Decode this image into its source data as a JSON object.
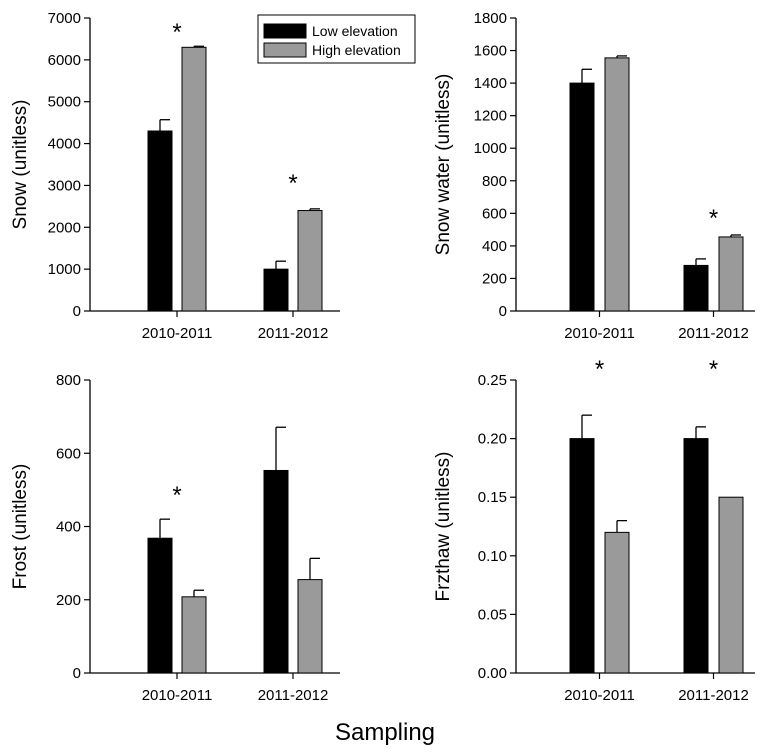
{
  "figure": {
    "xlabel": "Sampling"
  },
  "legend": {
    "items": [
      {
        "label": "Low elevation",
        "color": "#000000"
      },
      {
        "label": "High elevation",
        "color": "#9a9a9a"
      }
    ]
  },
  "chart_data": [
    {
      "type": "bar",
      "ylabel": "Snow (unitless)",
      "categories": [
        "2010-2011",
        "2011-2012"
      ],
      "series": [
        {
          "name": "Low elevation",
          "values": [
            4300,
            1000
          ],
          "errors": [
            270,
            190
          ]
        },
        {
          "name": "High elevation",
          "values": [
            6300,
            2400
          ],
          "errors": [
            25,
            40
          ]
        }
      ],
      "ylim": [
        0,
        7000
      ],
      "yticks": [
        "0",
        "1000",
        "2000",
        "3000",
        "4000",
        "5000",
        "6000",
        "7000"
      ],
      "significance": [
        "*",
        "*"
      ],
      "legend_position": "top-right"
    },
    {
      "type": "bar",
      "ylabel": "Snow water (unitless)",
      "categories": [
        "2010-2011",
        "2011-2012"
      ],
      "series": [
        {
          "name": "Low elevation",
          "values": [
            1400,
            280
          ],
          "errors": [
            85,
            40
          ]
        },
        {
          "name": "High elevation",
          "values": [
            1555,
            455
          ],
          "errors": [
            12,
            12
          ]
        }
      ],
      "ylim": [
        0,
        1800
      ],
      "yticks": [
        "0",
        "200",
        "400",
        "600",
        "800",
        "1000",
        "1200",
        "1400",
        "1600",
        "1800"
      ],
      "significance": [
        "",
        "*"
      ]
    },
    {
      "type": "bar",
      "ylabel": "Frost (unitless)",
      "categories": [
        "2010-2011",
        "2011-2012"
      ],
      "series": [
        {
          "name": "Low elevation",
          "values": [
            368,
            553
          ],
          "errors": [
            52,
            118
          ]
        },
        {
          "name": "High elevation",
          "values": [
            208,
            255
          ],
          "errors": [
            18,
            58
          ]
        }
      ],
      "ylim": [
        0,
        800
      ],
      "yticks": [
        "0",
        "200",
        "400",
        "600",
        "800"
      ],
      "significance": [
        "*",
        ""
      ]
    },
    {
      "type": "bar",
      "ylabel": "Frzthaw (unitless)",
      "categories": [
        "2010-2011",
        "2011-2012"
      ],
      "series": [
        {
          "name": "Low elevation",
          "values": [
            0.2,
            0.2
          ],
          "errors": [
            0.02,
            0.01
          ]
        },
        {
          "name": "High elevation",
          "values": [
            0.12,
            0.15
          ],
          "errors": [
            0.01,
            0
          ]
        }
      ],
      "ylim": [
        0,
        0.25
      ],
      "yticks": [
        "0.00",
        "0.05",
        "0.10",
        "0.15",
        "0.20",
        "0.25"
      ],
      "significance": [
        "*",
        "*"
      ]
    }
  ]
}
